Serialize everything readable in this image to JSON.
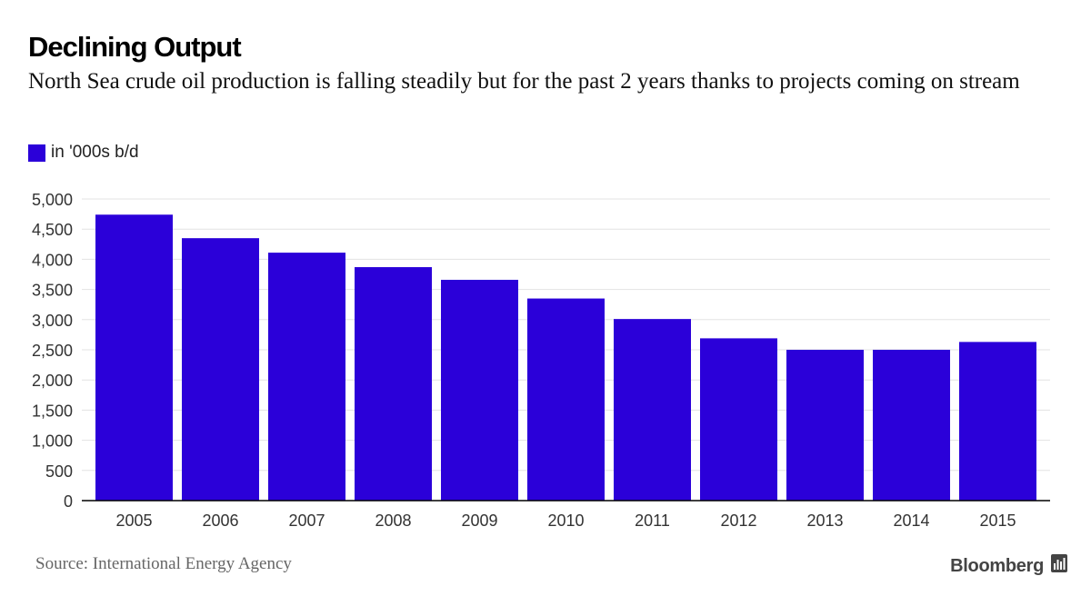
{
  "chart_data": {
    "type": "bar",
    "title": "Declining Output",
    "subtitle": "North Sea crude oil production is falling steadily but for the past 2 years thanks to projects coming on stream",
    "legend": "in '000s b/d",
    "categories": [
      "2005",
      "2006",
      "2007",
      "2008",
      "2009",
      "2010",
      "2011",
      "2012",
      "2013",
      "2014",
      "2015"
    ],
    "series": [
      {
        "name": "in '000s b/d",
        "values": [
          4740,
          4350,
          4110,
          3870,
          3660,
          3350,
          3010,
          2690,
          2500,
          2500,
          2630
        ]
      }
    ],
    "ylim": [
      0,
      5000
    ],
    "yticks": [
      0,
      500,
      1000,
      1500,
      2000,
      2500,
      3000,
      3500,
      4000,
      4500,
      5000
    ],
    "ytick_labels": [
      "0",
      "500",
      "1,000",
      "1,500",
      "2,000",
      "2,500",
      "3,000",
      "3,500",
      "4,000",
      "4,500",
      "5,000"
    ],
    "grid": true,
    "bar_color": "#2b00d9",
    "grid_color": "#e3e3e3",
    "axis_color": "#000000"
  },
  "footer": {
    "source": "Source: International Energy Agency",
    "brand": "Bloomberg"
  }
}
